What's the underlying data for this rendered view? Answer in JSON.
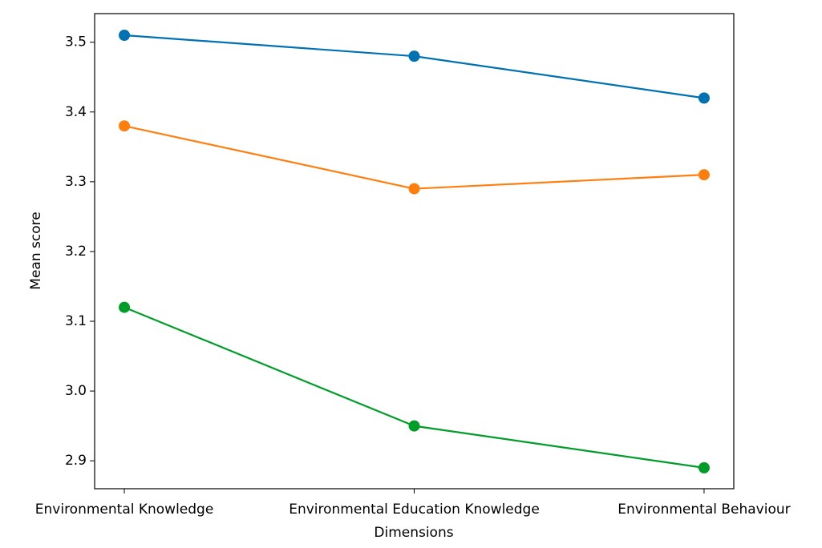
{
  "chart_data": {
    "type": "line",
    "x_label": "Dimensions",
    "y_label": "Mean score",
    "categories": [
      "Environmental Knowledge",
      "Environmental Education Knowledge",
      "Environmental Behaviour"
    ],
    "series": [
      {
        "color": "#0072b2",
        "values": [
          3.51,
          3.48,
          3.42
        ]
      },
      {
        "color": "#ff7f0e",
        "values": [
          3.38,
          3.29,
          3.31
        ]
      },
      {
        "color": "#009e29",
        "values": [
          3.12,
          2.95,
          2.89
        ]
      }
    ],
    "ylim": [
      2.86,
      3.541
    ],
    "yticks": [
      2.9,
      {
        "value": 3,
        "label": "3.0"
      },
      3.1,
      3.2,
      3.3,
      3.4,
      3.5
    ],
    "grid": false
  }
}
